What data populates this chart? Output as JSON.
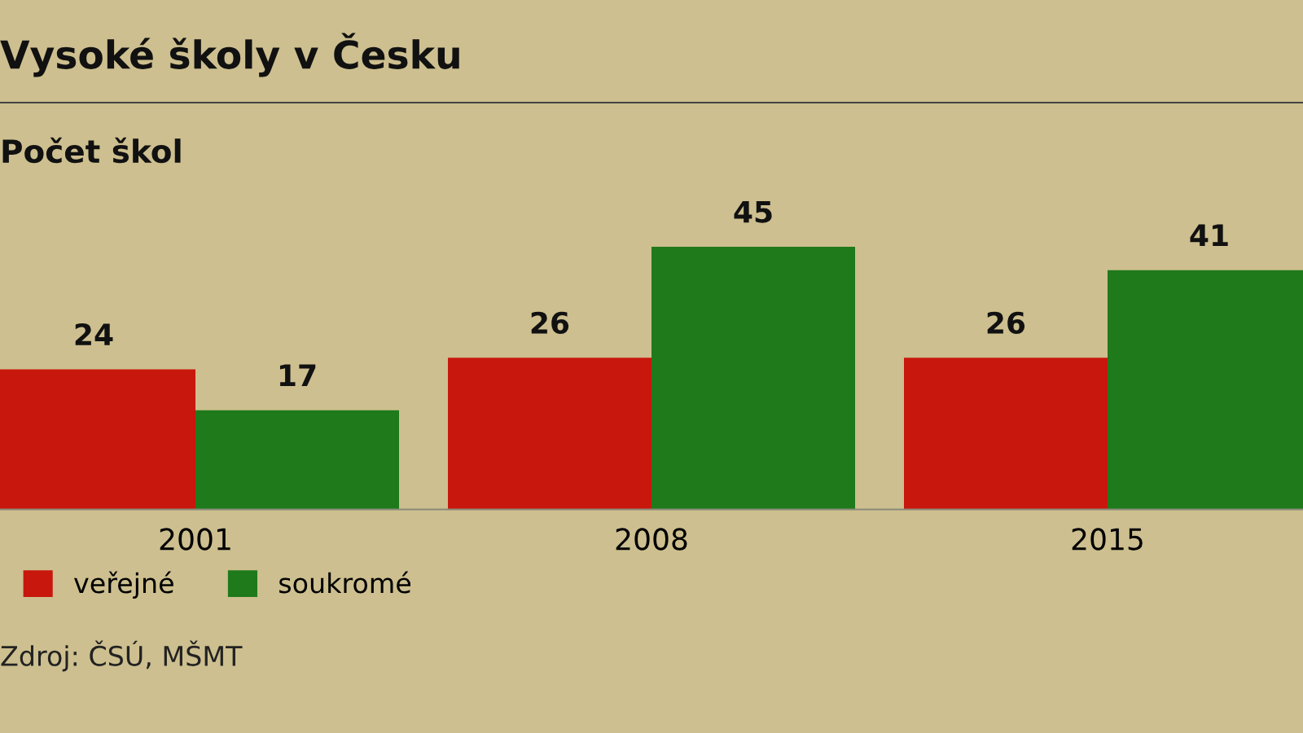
{
  "chart_data": {
    "type": "bar",
    "title": "Vysoké školy v Česku",
    "subtitle": "Počet škol",
    "categories": [
      "2001",
      "2008",
      "2015"
    ],
    "series": [
      {
        "name": "veřejné",
        "color": "#c8170d",
        "values": [
          24,
          26,
          26
        ]
      },
      {
        "name": "soukromé",
        "color": "#1e7a1a",
        "values": [
          17,
          45,
          41
        ]
      }
    ],
    "data_labels": true,
    "legend": "bottom left",
    "grid": false,
    "annotations": [
      "Zdroj: ČSÚ, MŠMT"
    ]
  }
}
